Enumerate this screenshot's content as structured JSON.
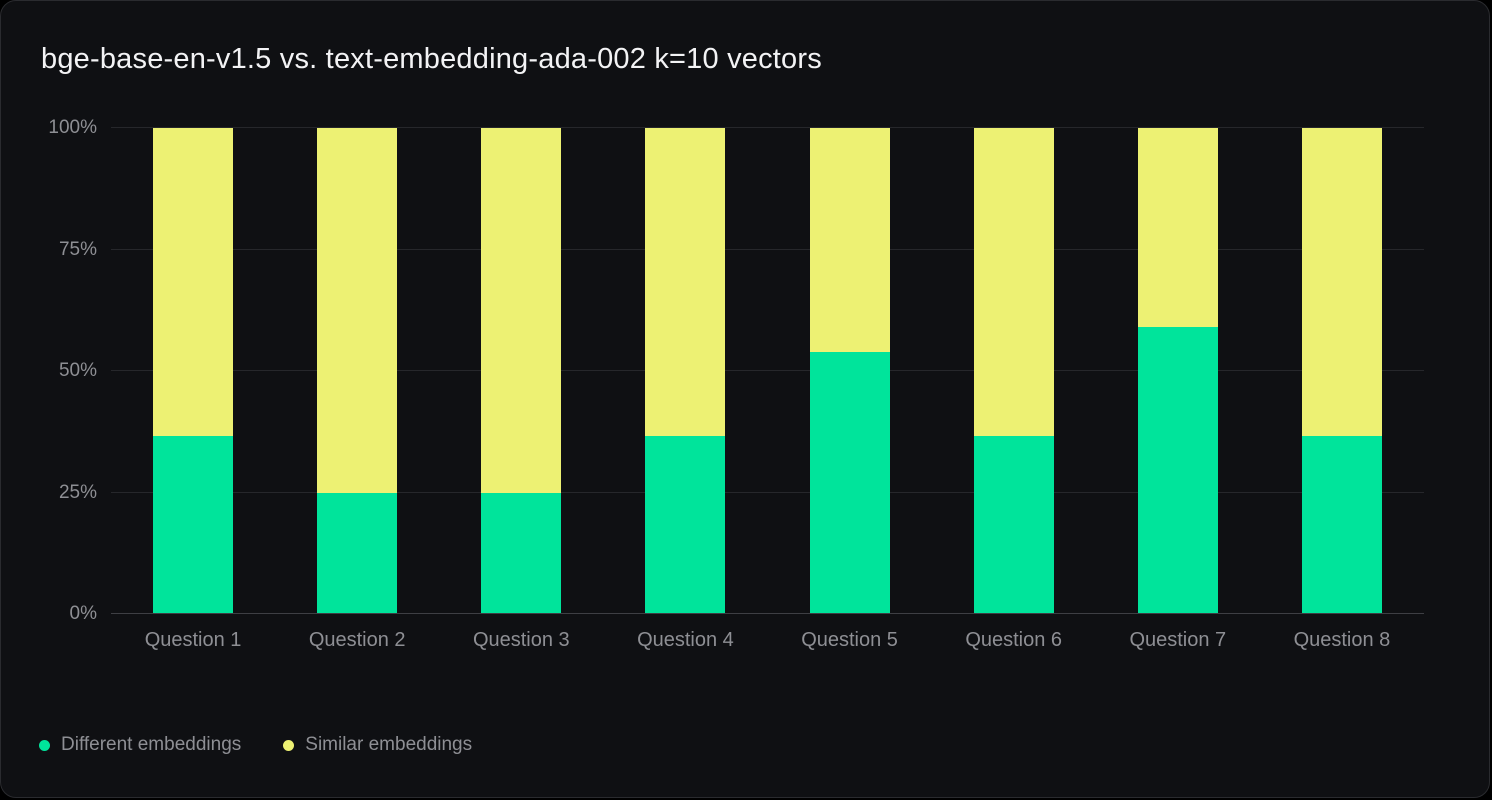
{
  "chart_data": {
    "type": "bar",
    "stacked": true,
    "title": "bge-base-en-v1.5 vs. text-embedding-ada-002 k=10 vectors",
    "xlabel": "",
    "ylabel": "",
    "ylim": [
      0,
      100
    ],
    "grid": true,
    "legend_position": "bottom-left",
    "categories": [
      "Question 1",
      "Question 2",
      "Question 3",
      "Question 4",
      "Question 5",
      "Question 6",
      "Question 7",
      "Question 8"
    ],
    "series": [
      {
        "name": "Different embeddings",
        "color": "#00e49b",
        "values": [
          36.6,
          25,
          25,
          36.6,
          54,
          36.6,
          59,
          36.6
        ]
      },
      {
        "name": "Similar embeddings",
        "color": "#edf173",
        "values": [
          63.4,
          75,
          75,
          63.4,
          46,
          63.4,
          41,
          63.4
        ]
      }
    ],
    "y_ticks": [
      {
        "label": "0%",
        "value": 0
      },
      {
        "label": "25%",
        "value": 25
      },
      {
        "label": "50%",
        "value": 50
      },
      {
        "label": "75%",
        "value": 75
      },
      {
        "label": "100%",
        "value": 100
      }
    ]
  },
  "colors": {
    "card_background": "#0f1013",
    "card_border": "#2a2b2f",
    "title_text": "#f3f3f5",
    "axis_text": "#8e8f94",
    "gridline": "#26272b",
    "baseline": "#3e3f44",
    "series_green": "#00e49b",
    "series_yellow": "#edf173"
  }
}
